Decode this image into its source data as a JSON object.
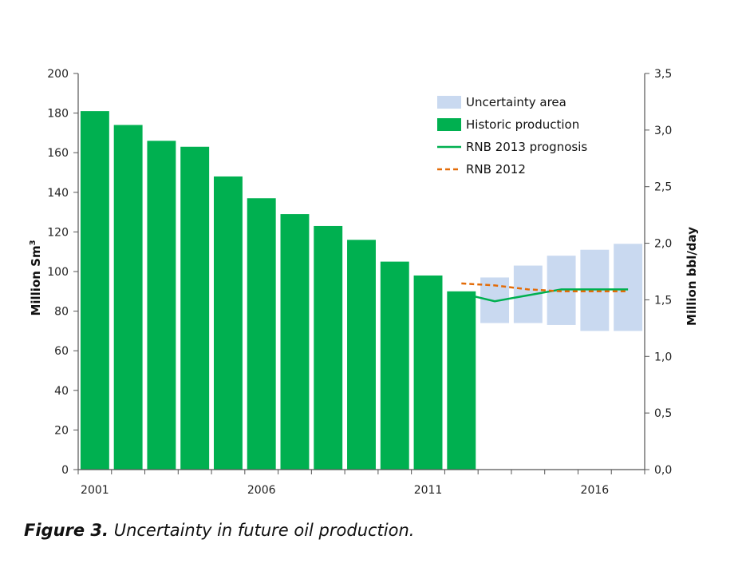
{
  "chart_data": {
    "type": "bar",
    "x_start_year": 2001,
    "x_end_year": 2017,
    "x_tick_labels": [
      "2001",
      "2006",
      "2011",
      "2016"
    ],
    "ylabel": "Million Sm³",
    "ylabel_base": "Million Sm",
    "ylabel_sup": "3",
    "ylim": [
      0,
      200
    ],
    "y_ticks": [
      "0",
      "20",
      "40",
      "60",
      "80",
      "100",
      "120",
      "140",
      "160",
      "180",
      "200"
    ],
    "y2label": "Million bbl/day",
    "y2lim": [
      0,
      3.5
    ],
    "y2_ticks": [
      "0,0",
      "0,5",
      "1,0",
      "1,5",
      "2,0",
      "2,5",
      "3,0",
      "3,5"
    ],
    "grid": false,
    "legend_position": "top-right",
    "series": [
      {
        "name": "Uncertainty area",
        "kind": "range-bar",
        "color": "#c9d9f0",
        "points": [
          {
            "year": 2013,
            "low": 74,
            "high": 97
          },
          {
            "year": 2014,
            "low": 74,
            "high": 103
          },
          {
            "year": 2015,
            "low": 73,
            "high": 108
          },
          {
            "year": 2016,
            "low": 70,
            "high": 111
          },
          {
            "year": 2017,
            "low": 70,
            "high": 114
          }
        ]
      },
      {
        "name": "Historic production",
        "kind": "bar",
        "color": "#00b050",
        "points": [
          {
            "year": 2001,
            "value": 181
          },
          {
            "year": 2002,
            "value": 174
          },
          {
            "year": 2003,
            "value": 166
          },
          {
            "year": 2004,
            "value": 163
          },
          {
            "year": 2005,
            "value": 148
          },
          {
            "year": 2006,
            "value": 137
          },
          {
            "year": 2007,
            "value": 129
          },
          {
            "year": 2008,
            "value": 123
          },
          {
            "year": 2009,
            "value": 116
          },
          {
            "year": 2010,
            "value": 105
          },
          {
            "year": 2011,
            "value": 98
          },
          {
            "year": 2012,
            "value": 90
          }
        ]
      },
      {
        "name": "RNB 2013 prognosis",
        "kind": "line",
        "style": "solid",
        "color": "#00b050",
        "points": [
          {
            "year": 2012,
            "value": 89
          },
          {
            "year": 2013,
            "value": 85
          },
          {
            "year": 2014,
            "value": 88
          },
          {
            "year": 2015,
            "value": 91
          },
          {
            "year": 2016,
            "value": 91
          },
          {
            "year": 2017,
            "value": 91
          }
        ]
      },
      {
        "name": "RNB 2012",
        "kind": "line",
        "style": "dashed",
        "color": "#e36c09",
        "points": [
          {
            "year": 2012,
            "value": 94
          },
          {
            "year": 2013,
            "value": 93
          },
          {
            "year": 2014,
            "value": 91
          },
          {
            "year": 2015,
            "value": 90
          },
          {
            "year": 2016,
            "value": 90
          },
          {
            "year": 2017,
            "value": 90
          }
        ]
      }
    ]
  },
  "caption": {
    "label": "Figure 3.",
    "text": " Uncertainty in future oil production."
  }
}
